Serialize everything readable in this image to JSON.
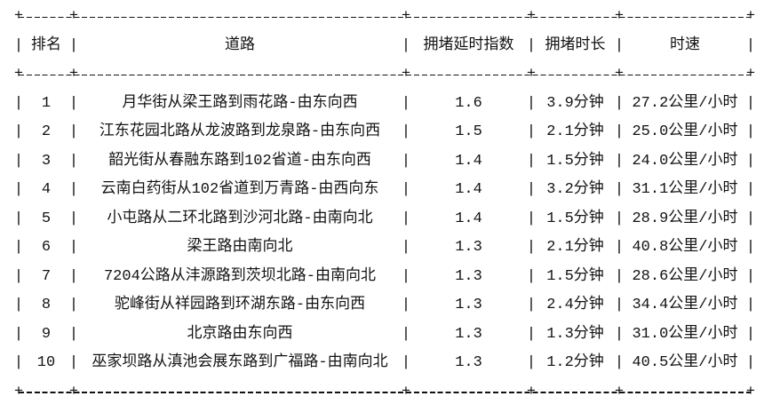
{
  "glyphs": {
    "pipe": "|",
    "plus": "+"
  },
  "table": {
    "headers": [
      "排名",
      "道路",
      "拥堵延时指数",
      "拥堵时长",
      "时速"
    ],
    "rows": [
      {
        "rank": "1",
        "road": "月华街从梁王路到雨花路-由东向西",
        "index": "1.6",
        "duration": "3.9分钟",
        "speed": "27.2公里/小时"
      },
      {
        "rank": "2",
        "road": "江东花园北路从龙波路到龙泉路-由东向西",
        "index": "1.5",
        "duration": "2.1分钟",
        "speed": "25.0公里/小时"
      },
      {
        "rank": "3",
        "road": "韶光街从春融东路到102省道-由东向西",
        "index": "1.4",
        "duration": "1.5分钟",
        "speed": "24.0公里/小时"
      },
      {
        "rank": "4",
        "road": "云南白药街从102省道到万青路-由西向东",
        "index": "1.4",
        "duration": "3.2分钟",
        "speed": "31.1公里/小时"
      },
      {
        "rank": "5",
        "road": "小屯路从二环北路到沙河北路-由南向北",
        "index": "1.4",
        "duration": "1.5分钟",
        "speed": "28.9公里/小时"
      },
      {
        "rank": "6",
        "road": "梁王路由南向北",
        "index": "1.3",
        "duration": "2.1分钟",
        "speed": "40.8公里/小时"
      },
      {
        "rank": "7",
        "road": "7204公路从沣源路到茨坝北路-由南向北",
        "index": "1.3",
        "duration": "1.5分钟",
        "speed": "28.6公里/小时"
      },
      {
        "rank": "8",
        "road": "驼峰街从祥园路到环湖东路-由东向西",
        "index": "1.3",
        "duration": "2.4分钟",
        "speed": "34.4公里/小时"
      },
      {
        "rank": "9",
        "road": "北京路由东向西",
        "index": "1.3",
        "duration": "1.3分钟",
        "speed": "31.0公里/小时"
      },
      {
        "rank": "10",
        "road": "巫家坝路从滇池会展东路到广福路-由南向北",
        "index": "1.3",
        "duration": "1.2分钟",
        "speed": "40.5公里/小时"
      }
    ]
  }
}
